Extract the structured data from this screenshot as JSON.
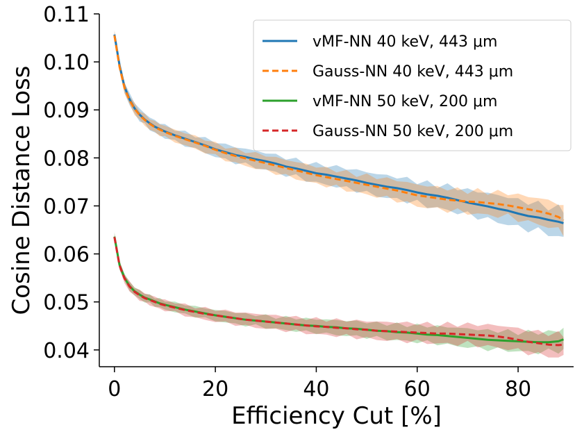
{
  "chart_data": {
    "type": "line",
    "title": "",
    "xlabel": "Efficiency Cut [%]",
    "ylabel": "Cosine Distance Loss",
    "xlim": [
      -3,
      91
    ],
    "ylim": [
      0.0365,
      0.11
    ],
    "x_ticks": [
      0,
      20,
      40,
      60,
      80
    ],
    "x_tick_labels": [
      "0",
      "20",
      "40",
      "60",
      "80"
    ],
    "y_ticks": [
      0.04,
      0.05,
      0.06,
      0.07,
      0.08,
      0.09,
      0.1,
      0.11
    ],
    "y_tick_labels": [
      "0.04",
      "0.05",
      "0.06",
      "0.07",
      "0.08",
      "0.09",
      "0.10",
      "0.11"
    ],
    "grid": false,
    "legend_position": "top-right",
    "x": [
      0,
      1,
      2,
      3,
      4,
      5,
      6,
      7,
      8,
      9,
      10,
      12,
      14,
      16,
      18,
      20,
      22,
      24,
      26,
      28,
      30,
      32,
      34,
      36,
      38,
      40,
      42,
      44,
      46,
      48,
      50,
      52,
      54,
      56,
      58,
      60,
      62,
      64,
      66,
      68,
      70,
      72,
      74,
      76,
      78,
      80,
      82,
      84,
      86,
      88,
      89
    ],
    "series": [
      {
        "name": "vMF-NN 40 keV, 443 μm",
        "color": "#1f77b4",
        "style": "solid",
        "values": [
          0.1057,
          0.0993,
          0.0948,
          0.0922,
          0.0903,
          0.089,
          0.088,
          0.0872,
          0.0865,
          0.086,
          0.0855,
          0.0847,
          0.084,
          0.0833,
          0.0826,
          0.0818,
          0.0812,
          0.0806,
          0.0802,
          0.0797,
          0.0793,
          0.0788,
          0.0782,
          0.0778,
          0.0773,
          0.0768,
          0.0765,
          0.0761,
          0.0757,
          0.0753,
          0.0748,
          0.0744,
          0.074,
          0.0737,
          0.0733,
          0.0728,
          0.0724,
          0.0721,
          0.0717,
          0.0712,
          0.0707,
          0.0703,
          0.0699,
          0.0694,
          0.069,
          0.0684,
          0.0679,
          0.0676,
          0.0671,
          0.0667,
          0.0664
        ],
        "band": 0.0011
      },
      {
        "name": "Gauss-NN 40 keV, 443 μm",
        "color": "#ff7f0e",
        "style": "dashed",
        "values": [
          0.1055,
          0.099,
          0.0946,
          0.092,
          0.0902,
          0.0889,
          0.0879,
          0.0871,
          0.0864,
          0.0859,
          0.0854,
          0.0846,
          0.0839,
          0.0832,
          0.0825,
          0.0817,
          0.081,
          0.0804,
          0.0799,
          0.0794,
          0.0789,
          0.0784,
          0.0779,
          0.0774,
          0.0769,
          0.0764,
          0.076,
          0.0756,
          0.0752,
          0.0748,
          0.0744,
          0.074,
          0.0736,
          0.0732,
          0.0727,
          0.0722,
          0.0719,
          0.0716,
          0.0713,
          0.0711,
          0.0709,
          0.0708,
          0.0706,
          0.0704,
          0.0701,
          0.0697,
          0.0693,
          0.0689,
          0.0684,
          0.0677,
          0.067
        ],
        "band": 0.001
      },
      {
        "name": "vMF-NN 50 keV, 200 μm",
        "color": "#2ca02c",
        "style": "solid",
        "values": [
          0.0636,
          0.0577,
          0.055,
          0.0533,
          0.0522,
          0.0515,
          0.0509,
          0.0505,
          0.0501,
          0.0497,
          0.0494,
          0.0489,
          0.0484,
          0.048,
          0.0476,
          0.0472,
          0.0469,
          0.0466,
          0.0463,
          0.0461,
          0.0459,
          0.0457,
          0.0455,
          0.0453,
          0.0451,
          0.045,
          0.0448,
          0.0447,
          0.0445,
          0.0444,
          0.0442,
          0.044,
          0.0439,
          0.0437,
          0.0436,
          0.0434,
          0.0432,
          0.0431,
          0.0429,
          0.0427,
          0.0425,
          0.0423,
          0.0421,
          0.042,
          0.0419,
          0.0418,
          0.0417,
          0.0416,
          0.0416,
          0.0418,
          0.0422
        ],
        "band": 0.0008
      },
      {
        "name": "Gauss-NN 50 keV, 200 μm",
        "color": "#d62728",
        "style": "dashed",
        "values": [
          0.0635,
          0.0576,
          0.0549,
          0.0532,
          0.0521,
          0.0514,
          0.0508,
          0.0504,
          0.05,
          0.0496,
          0.0493,
          0.0488,
          0.0483,
          0.0479,
          0.0475,
          0.0472,
          0.0469,
          0.0466,
          0.0463,
          0.0461,
          0.0459,
          0.0457,
          0.0455,
          0.0453,
          0.0451,
          0.0449,
          0.0448,
          0.0446,
          0.0445,
          0.0443,
          0.0442,
          0.044,
          0.0439,
          0.0438,
          0.0437,
          0.0436,
          0.0435,
          0.0434,
          0.0434,
          0.0433,
          0.0432,
          0.0431,
          0.043,
          0.0428,
          0.0425,
          0.0421,
          0.0417,
          0.0414,
          0.0411,
          0.041,
          0.0411
        ],
        "band": 0.0009
      }
    ]
  }
}
